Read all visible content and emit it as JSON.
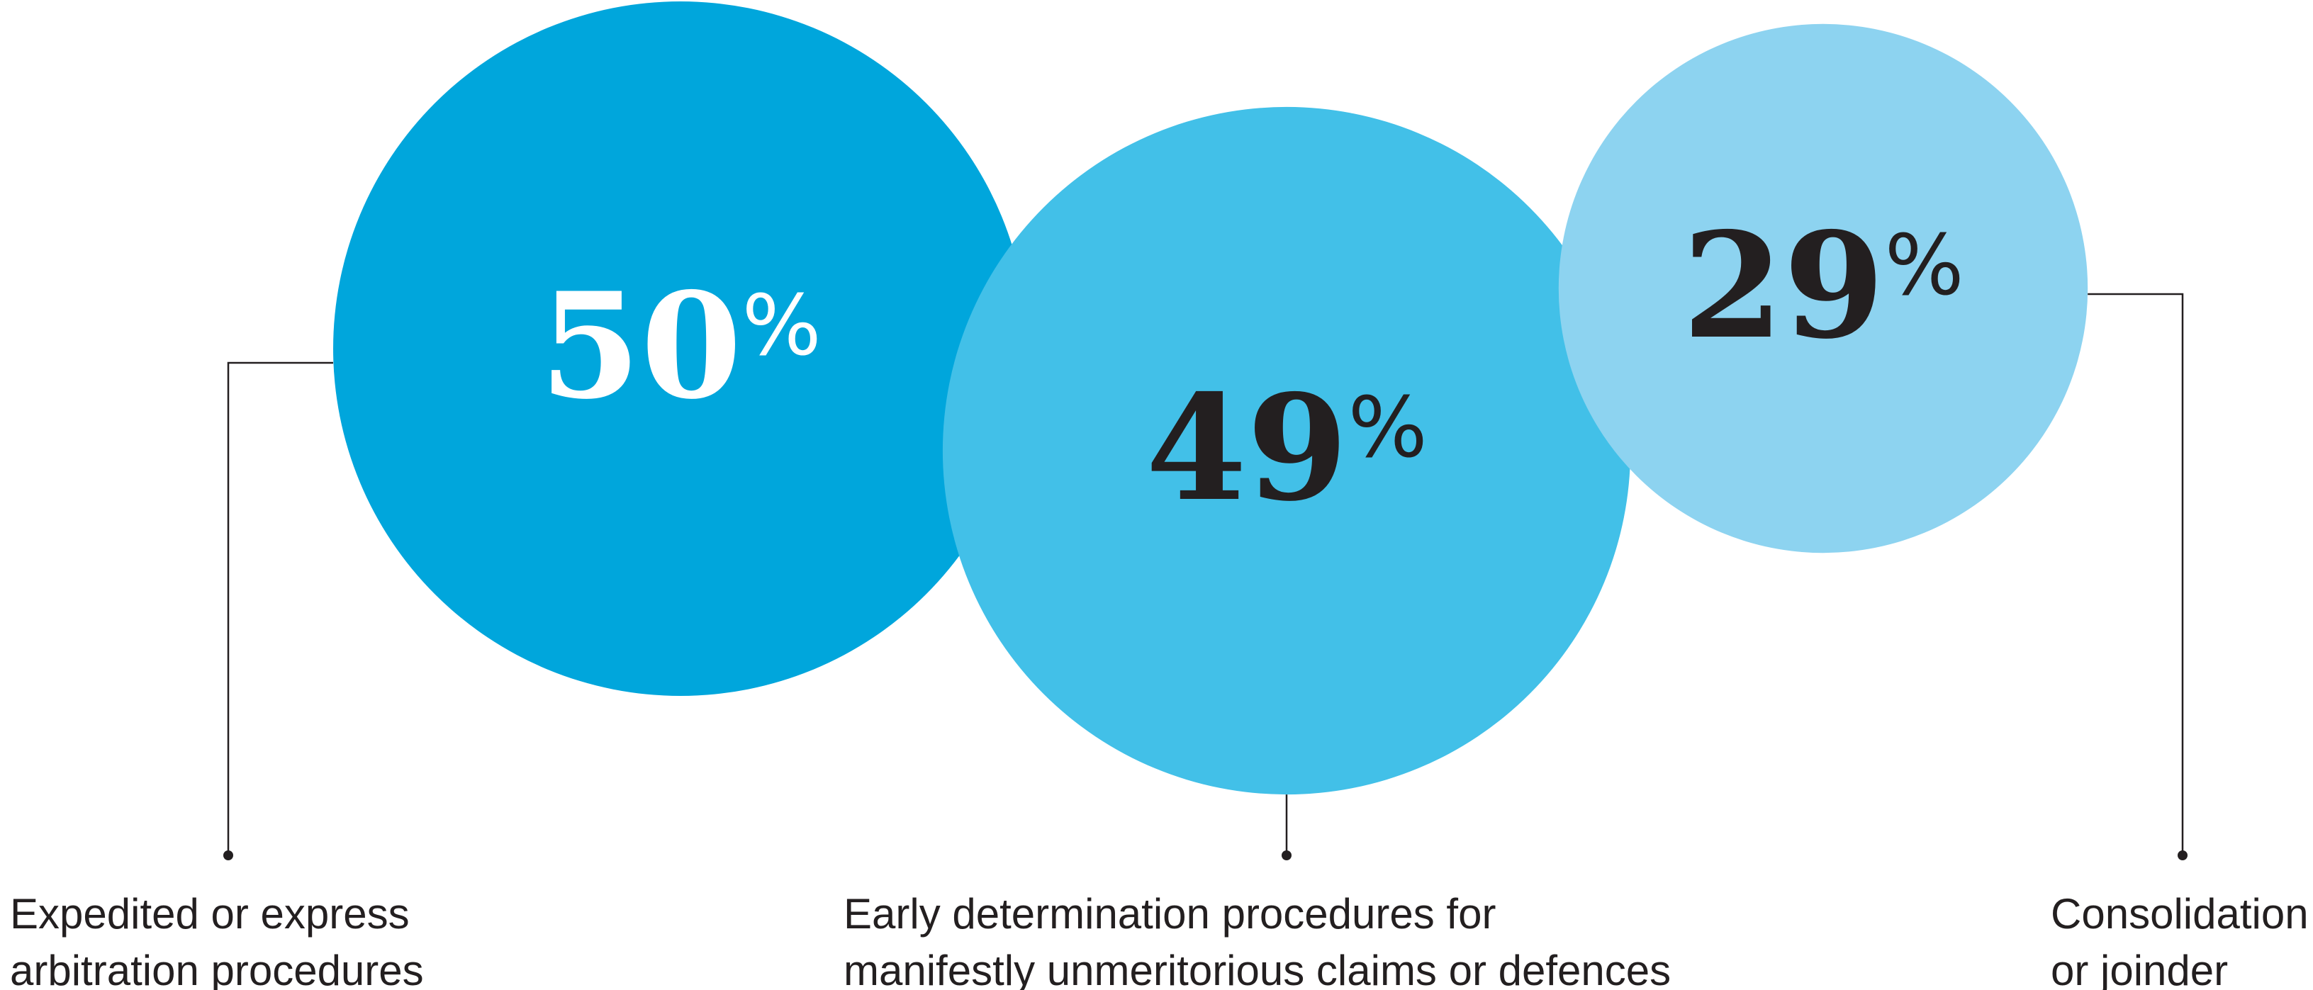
{
  "chart_data": {
    "type": "bubble",
    "unit": "%",
    "categories": [
      "Expedited or express arbitration procedures",
      "Early determination procedures for manifestly unmeritorious claims or defences",
      "Consolidation or joinder"
    ],
    "values": [
      50,
      49,
      29
    ],
    "labels": [
      {
        "value": "50",
        "unit": "%",
        "lines": [
          "Expedited or express",
          "arbitration procedures"
        ],
        "color": "#00a6dc",
        "text_color": "#ffffff"
      },
      {
        "value": "49",
        "unit": "%",
        "lines": [
          "Early determination procedures for",
          "manifestly unmeritorious claims or defences"
        ],
        "color": "#42c0e8",
        "text_color": "#231f20"
      },
      {
        "value": "29",
        "unit": "%",
        "lines": [
          "Consolidation",
          "or joinder"
        ],
        "color": "#8dd3f0",
        "text_color": "#231f20"
      }
    ],
    "leader_line_color": "#231f20"
  }
}
